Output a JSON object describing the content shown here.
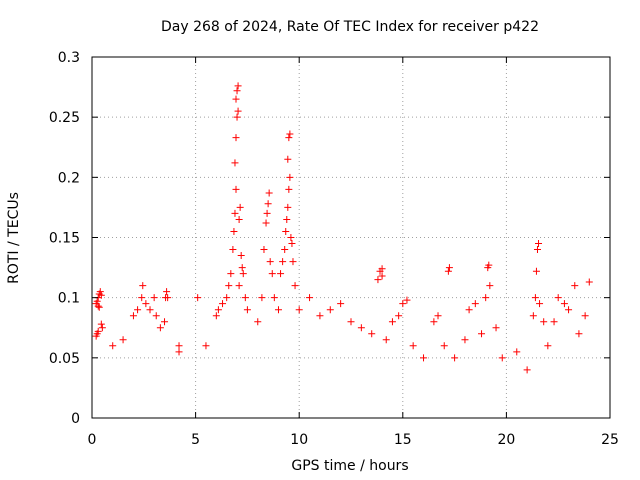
{
  "chart_data": {
    "type": "scatter",
    "title": "Day 268 of 2024, Rate Of TEC Index for receiver p422",
    "xlabel": "GPS time / hours",
    "ylabel": "ROTI / TECUs",
    "xlim": [
      0,
      25
    ],
    "ylim": [
      0,
      0.3
    ],
    "xticks": [
      0,
      5,
      10,
      15,
      20,
      25
    ],
    "yticks": [
      0,
      0.05,
      0.1,
      0.15,
      0.2,
      0.25,
      0.3
    ],
    "xtick_labels": [
      "0",
      "5",
      "10",
      "15",
      "20",
      "25"
    ],
    "ytick_labels": [
      "0",
      "0.05",
      "0.1",
      "0.15",
      "0.2",
      "0.25",
      "0.3"
    ],
    "grid": true,
    "legend": "none",
    "marker": "plus",
    "color": "#ff0000",
    "series": [
      {
        "points": [
          [
            0.2,
            0.068
          ],
          [
            0.25,
            0.07
          ],
          [
            0.3,
            0.072
          ],
          [
            0.2,
            0.095
          ],
          [
            0.25,
            0.097
          ],
          [
            0.3,
            0.1
          ],
          [
            0.35,
            0.103
          ],
          [
            0.4,
            0.105
          ],
          [
            0.45,
            0.102
          ],
          [
            0.3,
            0.093
          ],
          [
            0.35,
            0.092
          ],
          [
            0.5,
            0.075
          ],
          [
            0.45,
            0.078
          ],
          [
            1.0,
            0.06
          ],
          [
            1.5,
            0.065
          ],
          [
            2.0,
            0.085
          ],
          [
            2.2,
            0.09
          ],
          [
            2.4,
            0.1
          ],
          [
            2.45,
            0.11
          ],
          [
            2.6,
            0.095
          ],
          [
            2.8,
            0.09
          ],
          [
            3.0,
            0.1
          ],
          [
            3.1,
            0.085
          ],
          [
            3.3,
            0.075
          ],
          [
            3.5,
            0.08
          ],
          [
            3.55,
            0.1
          ],
          [
            3.6,
            0.105
          ],
          [
            3.65,
            0.1
          ],
          [
            4.2,
            0.055
          ],
          [
            4.2,
            0.06
          ],
          [
            5.1,
            0.1
          ],
          [
            5.5,
            0.06
          ],
          [
            6.0,
            0.085
          ],
          [
            6.1,
            0.09
          ],
          [
            6.3,
            0.095
          ],
          [
            6.5,
            0.1
          ],
          [
            6.6,
            0.11
          ],
          [
            6.7,
            0.12
          ],
          [
            6.8,
            0.14
          ],
          [
            6.85,
            0.155
          ],
          [
            6.9,
            0.17
          ],
          [
            6.95,
            0.19
          ],
          [
            6.9,
            0.212
          ],
          [
            6.95,
            0.233
          ],
          [
            7.0,
            0.25
          ],
          [
            7.05,
            0.255
          ],
          [
            6.95,
            0.265
          ],
          [
            7.0,
            0.272
          ],
          [
            7.05,
            0.276
          ],
          [
            7.1,
            0.165
          ],
          [
            7.15,
            0.175
          ],
          [
            7.2,
            0.135
          ],
          [
            7.25,
            0.125
          ],
          [
            7.3,
            0.12
          ],
          [
            7.1,
            0.11
          ],
          [
            7.4,
            0.1
          ],
          [
            7.5,
            0.09
          ],
          [
            8.0,
            0.08
          ],
          [
            8.2,
            0.1
          ],
          [
            8.3,
            0.14
          ],
          [
            8.4,
            0.162
          ],
          [
            8.45,
            0.17
          ],
          [
            8.5,
            0.178
          ],
          [
            8.55,
            0.187
          ],
          [
            8.6,
            0.13
          ],
          [
            8.7,
            0.12
          ],
          [
            8.8,
            0.1
          ],
          [
            9.0,
            0.09
          ],
          [
            9.1,
            0.12
          ],
          [
            9.2,
            0.13
          ],
          [
            9.3,
            0.14
          ],
          [
            9.35,
            0.155
          ],
          [
            9.4,
            0.165
          ],
          [
            9.45,
            0.175
          ],
          [
            9.5,
            0.19
          ],
          [
            9.55,
            0.2
          ],
          [
            9.45,
            0.215
          ],
          [
            9.5,
            0.233
          ],
          [
            9.55,
            0.236
          ],
          [
            9.6,
            0.15
          ],
          [
            9.65,
            0.145
          ],
          [
            9.7,
            0.13
          ],
          [
            9.8,
            0.11
          ],
          [
            10.0,
            0.09
          ],
          [
            10.5,
            0.1
          ],
          [
            11.0,
            0.085
          ],
          [
            11.5,
            0.09
          ],
          [
            12.0,
            0.095
          ],
          [
            12.5,
            0.08
          ],
          [
            13.0,
            0.075
          ],
          [
            13.5,
            0.07
          ],
          [
            13.8,
            0.115
          ],
          [
            13.9,
            0.122
          ],
          [
            14.0,
            0.124
          ],
          [
            14.0,
            0.118
          ],
          [
            14.2,
            0.065
          ],
          [
            14.5,
            0.08
          ],
          [
            14.8,
            0.085
          ],
          [
            15.0,
            0.095
          ],
          [
            15.2,
            0.098
          ],
          [
            15.5,
            0.06
          ],
          [
            16.0,
            0.05
          ],
          [
            16.5,
            0.08
          ],
          [
            16.7,
            0.085
          ],
          [
            17.0,
            0.06
          ],
          [
            17.2,
            0.122
          ],
          [
            17.25,
            0.125
          ],
          [
            17.5,
            0.05
          ],
          [
            18.0,
            0.065
          ],
          [
            18.2,
            0.09
          ],
          [
            18.5,
            0.095
          ],
          [
            18.8,
            0.07
          ],
          [
            19.0,
            0.1
          ],
          [
            19.1,
            0.125
          ],
          [
            19.15,
            0.127
          ],
          [
            19.2,
            0.11
          ],
          [
            19.5,
            0.075
          ],
          [
            19.8,
            0.05
          ],
          [
            20.5,
            0.055
          ],
          [
            21.0,
            0.04
          ],
          [
            21.3,
            0.085
          ],
          [
            21.4,
            0.1
          ],
          [
            21.45,
            0.122
          ],
          [
            21.5,
            0.14
          ],
          [
            21.55,
            0.145
          ],
          [
            21.6,
            0.095
          ],
          [
            21.8,
            0.08
          ],
          [
            22.0,
            0.06
          ],
          [
            22.3,
            0.08
          ],
          [
            22.5,
            0.1
          ],
          [
            22.8,
            0.095
          ],
          [
            23.0,
            0.09
          ],
          [
            23.3,
            0.11
          ],
          [
            23.5,
            0.07
          ],
          [
            23.8,
            0.085
          ],
          [
            24.0,
            0.113
          ]
        ]
      }
    ]
  }
}
